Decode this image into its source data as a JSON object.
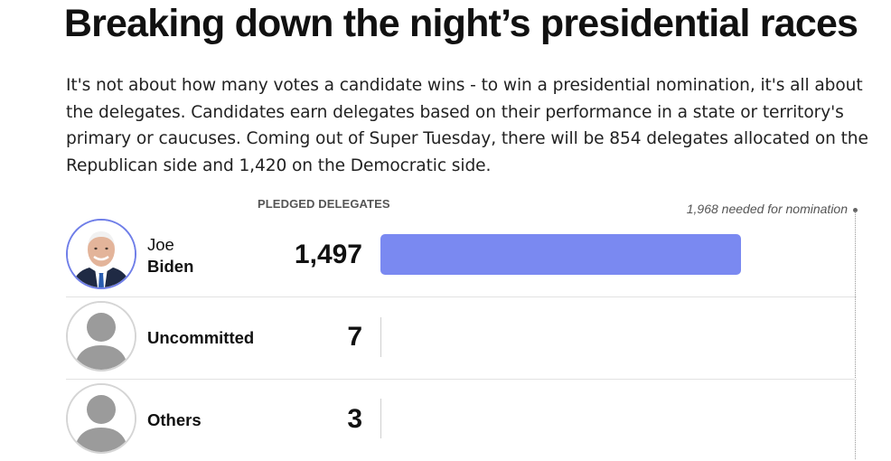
{
  "headline": "Breaking down the night’s presidential races",
  "intro": "It's not about how many votes a candidate wins - to win a presidential nomination, it's all about the delegates. Candidates earn delegates based on their performance in a state or territory's primary or caucuses. Coming out of Super Tuesday, there will be 854 delegates allocated on the Republican side and 1,420 on the Democratic side.",
  "table": {
    "column_header": "PLEDGED DELEGATES",
    "needed_label": "1,968 needed for nomination",
    "needed_value": 1968,
    "bar_color": "#7a89f1",
    "rows": [
      {
        "first": "Joe",
        "last": "Biden",
        "count_label": "1,497",
        "value": 1497,
        "avatar": "candidate-photo",
        "winner": true
      },
      {
        "first": "",
        "last": "Uncommitted",
        "count_label": "7",
        "value": 7,
        "avatar": "person-placeholder-icon",
        "winner": false
      },
      {
        "first": "",
        "last": "Others",
        "count_label": "3",
        "value": 3,
        "avatar": "person-placeholder-icon",
        "winner": false
      }
    ]
  }
}
